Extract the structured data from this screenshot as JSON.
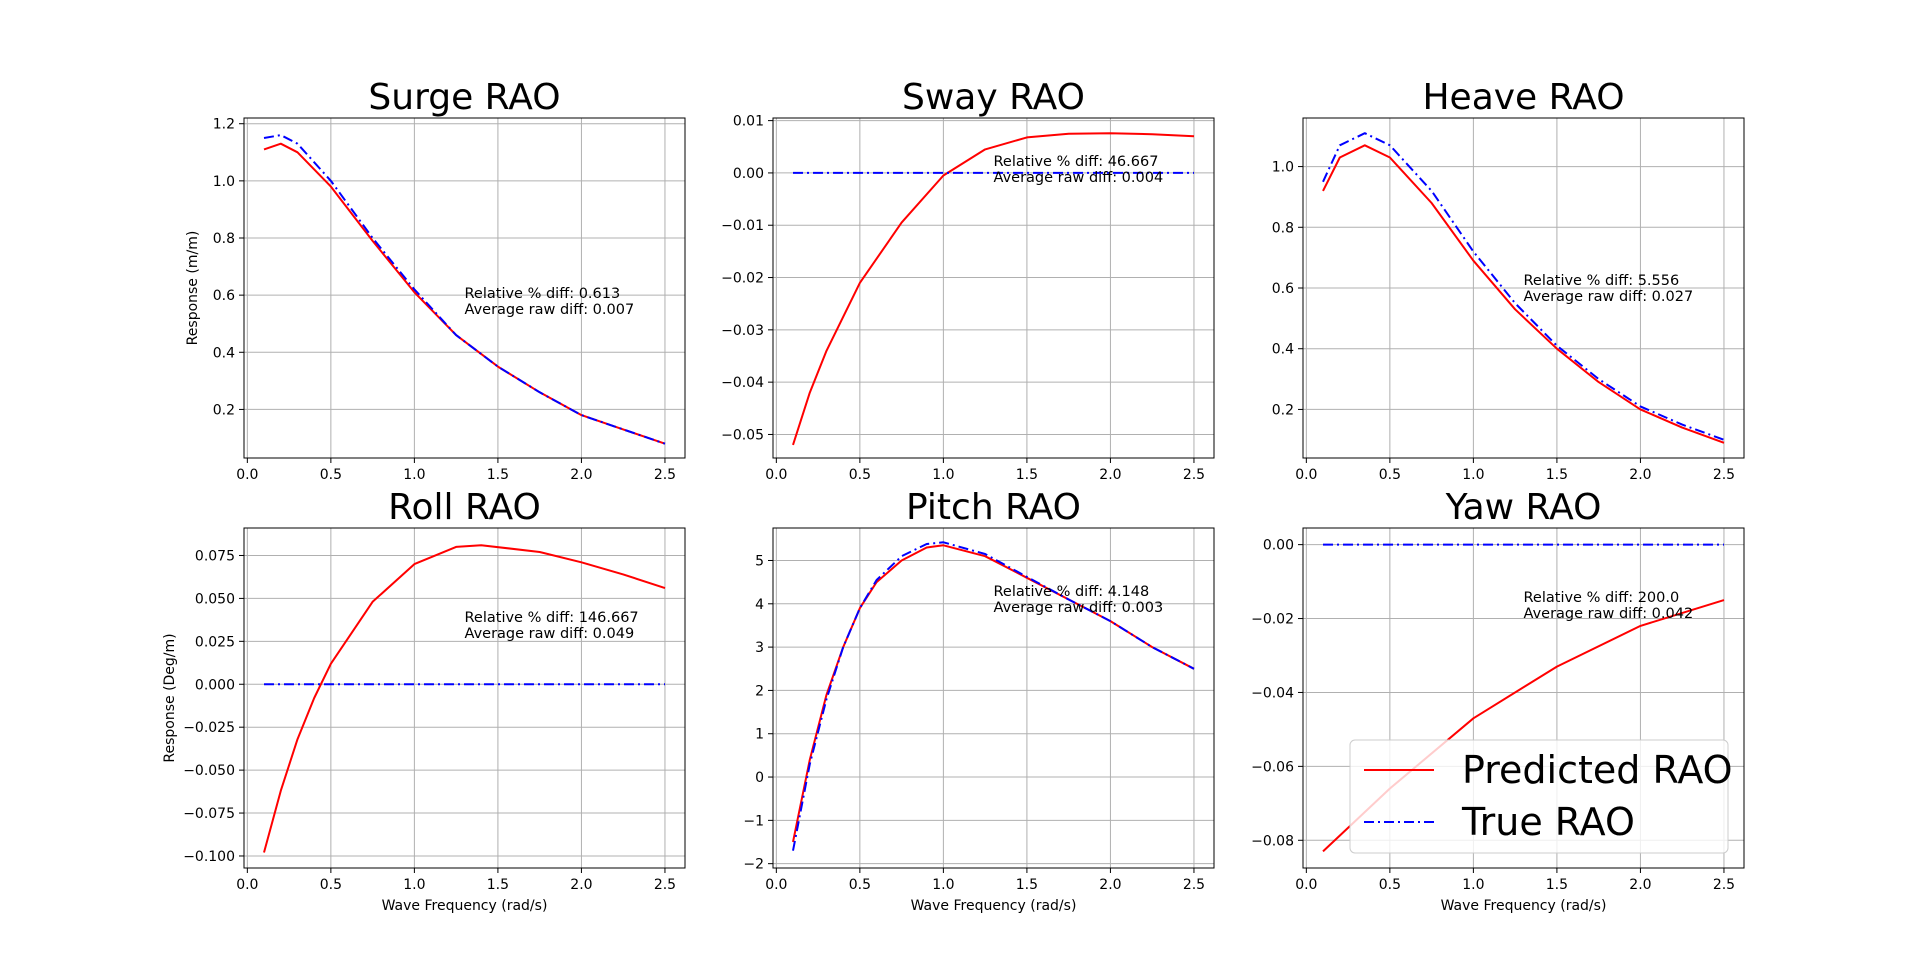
{
  "chart_data": [
    {
      "type": "line",
      "title": "Surge RAO",
      "xlabel": "",
      "ylabel": "Response (m/m)",
      "xlim": [
        -0.02,
        2.62
      ],
      "ylim": [
        0.03,
        1.22
      ],
      "xticks": [
        0.0,
        0.5,
        1.0,
        1.5,
        2.0,
        2.5
      ],
      "xtick_labels": [
        "0.0",
        "0.5",
        "1.0",
        "1.5",
        "2.0",
        "2.5"
      ],
      "yticks": [
        0.2,
        0.4,
        0.6,
        0.8,
        1.0,
        1.2
      ],
      "ytick_labels": [
        "0.2",
        "0.4",
        "0.6",
        "0.8",
        "1.0",
        "1.2"
      ],
      "grid": true,
      "annotation": [
        "Relative % diff: 0.613",
        "Average raw diff: 0.007"
      ],
      "series": [
        {
          "name": "Predicted RAO",
          "color": "#ff0000",
          "style": "solid",
          "x": [
            0.1,
            0.2,
            0.3,
            0.5,
            0.75,
            1.0,
            1.25,
            1.5,
            1.75,
            2.0,
            2.25,
            2.5
          ],
          "y": [
            1.11,
            1.13,
            1.1,
            0.98,
            0.79,
            0.61,
            0.46,
            0.35,
            0.26,
            0.18,
            0.13,
            0.08
          ]
        },
        {
          "name": "True RAO",
          "color": "#0000ff",
          "style": "dashdot",
          "x": [
            0.1,
            0.2,
            0.3,
            0.5,
            0.75,
            1.0,
            1.25,
            1.5,
            1.75,
            2.0,
            2.25,
            2.5
          ],
          "y": [
            1.15,
            1.16,
            1.13,
            1.0,
            0.8,
            0.62,
            0.46,
            0.35,
            0.26,
            0.18,
            0.13,
            0.08
          ]
        }
      ]
    },
    {
      "type": "line",
      "title": "Sway RAO",
      "xlabel": "",
      "ylabel": "",
      "xlim": [
        -0.02,
        2.62
      ],
      "ylim": [
        -0.0545,
        0.0105
      ],
      "xticks": [
        0.0,
        0.5,
        1.0,
        1.5,
        2.0,
        2.5
      ],
      "xtick_labels": [
        "0.0",
        "0.5",
        "1.0",
        "1.5",
        "2.0",
        "2.5"
      ],
      "yticks": [
        -0.05,
        -0.04,
        -0.03,
        -0.02,
        -0.01,
        0.0,
        0.01
      ],
      "ytick_labels": [
        "−0.05",
        "−0.04",
        "−0.03",
        "−0.02",
        "−0.01",
        "0.00",
        "0.01"
      ],
      "grid": true,
      "annotation": [
        "Relative % diff: 46.667",
        "Average raw diff: 0.004"
      ],
      "series": [
        {
          "name": "Predicted RAO",
          "color": "#ff0000",
          "style": "solid",
          "x": [
            0.1,
            0.2,
            0.3,
            0.5,
            0.75,
            1.0,
            1.25,
            1.5,
            1.75,
            2.0,
            2.25,
            2.5
          ],
          "y": [
            -0.052,
            -0.042,
            -0.034,
            -0.021,
            -0.0095,
            -0.0005,
            0.0045,
            0.0068,
            0.0075,
            0.0076,
            0.0074,
            0.007
          ]
        },
        {
          "name": "True RAO",
          "color": "#0000ff",
          "style": "dashdot",
          "x": [
            0.1,
            2.5
          ],
          "y": [
            0.0,
            0.0
          ]
        }
      ]
    },
    {
      "type": "line",
      "title": "Heave RAO",
      "xlabel": "",
      "ylabel": "",
      "xlim": [
        -0.02,
        2.62
      ],
      "ylim": [
        0.04,
        1.16
      ],
      "xticks": [
        0.0,
        0.5,
        1.0,
        1.5,
        2.0,
        2.5
      ],
      "xtick_labels": [
        "0.0",
        "0.5",
        "1.0",
        "1.5",
        "2.0",
        "2.5"
      ],
      "yticks": [
        0.2,
        0.4,
        0.6,
        0.8,
        1.0
      ],
      "ytick_labels": [
        "0.2",
        "0.4",
        "0.6",
        "0.8",
        "1.0"
      ],
      "grid": true,
      "annotation": [
        "Relative % diff: 5.556",
        "Average raw diff: 0.027"
      ],
      "series": [
        {
          "name": "Predicted RAO",
          "color": "#ff0000",
          "style": "solid",
          "x": [
            0.1,
            0.2,
            0.35,
            0.5,
            0.75,
            1.0,
            1.25,
            1.5,
            1.75,
            2.0,
            2.25,
            2.5
          ],
          "y": [
            0.92,
            1.03,
            1.07,
            1.03,
            0.88,
            0.69,
            0.53,
            0.4,
            0.29,
            0.2,
            0.14,
            0.09
          ]
        },
        {
          "name": "True RAO",
          "color": "#0000ff",
          "style": "dashdot",
          "x": [
            0.1,
            0.2,
            0.35,
            0.5,
            0.75,
            1.0,
            1.25,
            1.5,
            1.75,
            2.0,
            2.25,
            2.5
          ],
          "y": [
            0.95,
            1.07,
            1.11,
            1.07,
            0.92,
            0.72,
            0.55,
            0.41,
            0.3,
            0.21,
            0.15,
            0.1
          ]
        }
      ]
    },
    {
      "type": "line",
      "title": "Roll RAO",
      "xlabel": "Wave Frequency (rad/s)",
      "ylabel": "Response (Deg/m)",
      "xlim": [
        -0.02,
        2.62
      ],
      "ylim": [
        -0.107,
        0.091
      ],
      "xticks": [
        0.0,
        0.5,
        1.0,
        1.5,
        2.0,
        2.5
      ],
      "xtick_labels": [
        "0.0",
        "0.5",
        "1.0",
        "1.5",
        "2.0",
        "2.5"
      ],
      "yticks": [
        -0.1,
        -0.075,
        -0.05,
        -0.025,
        0.0,
        0.025,
        0.05,
        0.075
      ],
      "ytick_labels": [
        "−0.100",
        "−0.075",
        "−0.050",
        "−0.025",
        "0.000",
        "0.025",
        "0.050",
        "0.075"
      ],
      "grid": true,
      "annotation": [
        "Relative % diff: 146.667",
        "Average raw diff: 0.049"
      ],
      "series": [
        {
          "name": "Predicted RAO",
          "color": "#ff0000",
          "style": "solid",
          "x": [
            0.1,
            0.2,
            0.3,
            0.4,
            0.5,
            0.75,
            1.0,
            1.25,
            1.4,
            1.75,
            2.0,
            2.25,
            2.5
          ],
          "y": [
            -0.098,
            -0.062,
            -0.032,
            -0.008,
            0.012,
            0.048,
            0.07,
            0.08,
            0.081,
            0.077,
            0.071,
            0.064,
            0.056
          ]
        },
        {
          "name": "True RAO",
          "color": "#0000ff",
          "style": "dashdot",
          "x": [
            0.1,
            2.5
          ],
          "y": [
            0.0,
            0.0
          ]
        }
      ]
    },
    {
      "type": "line",
      "title": "Pitch RAO",
      "xlabel": "Wave Frequency (rad/s)",
      "ylabel": "",
      "xlim": [
        -0.02,
        2.62
      ],
      "ylim": [
        -2.1,
        5.75
      ],
      "xticks": [
        0.0,
        0.5,
        1.0,
        1.5,
        2.0,
        2.5
      ],
      "xtick_labels": [
        "0.0",
        "0.5",
        "1.0",
        "1.5",
        "2.0",
        "2.5"
      ],
      "yticks": [
        -2,
        -1,
        0,
        1,
        2,
        3,
        4,
        5
      ],
      "ytick_labels": [
        "−2",
        "−1",
        "0",
        "1",
        "2",
        "3",
        "4",
        "5"
      ],
      "grid": true,
      "annotation": [
        "Relative % diff: 4.148",
        "Average raw diff: 0.003"
      ],
      "series": [
        {
          "name": "Predicted RAO",
          "color": "#ff0000",
          "style": "solid",
          "x": [
            0.1,
            0.2,
            0.3,
            0.4,
            0.5,
            0.6,
            0.75,
            0.9,
            1.0,
            1.25,
            1.5,
            1.75,
            2.0,
            2.25,
            2.5
          ],
          "y": [
            -1.5,
            0.4,
            1.9,
            3.0,
            3.9,
            4.5,
            5.0,
            5.3,
            5.35,
            5.1,
            4.6,
            4.1,
            3.6,
            3.0,
            2.5
          ]
        },
        {
          "name": "True RAO",
          "color": "#0000ff",
          "style": "dashdot",
          "x": [
            0.1,
            0.2,
            0.3,
            0.4,
            0.5,
            0.6,
            0.75,
            0.9,
            1.0,
            1.25,
            1.5,
            1.75,
            2.0,
            2.25,
            2.5
          ],
          "y": [
            -1.7,
            0.3,
            1.8,
            3.0,
            3.9,
            4.55,
            5.1,
            5.38,
            5.42,
            5.15,
            4.62,
            4.1,
            3.6,
            3.0,
            2.5
          ]
        }
      ]
    },
    {
      "type": "line",
      "title": "Yaw RAO",
      "xlabel": "Wave Frequency (rad/s)",
      "ylabel": "",
      "xlim": [
        -0.02,
        2.62
      ],
      "ylim": [
        -0.0875,
        0.0045
      ],
      "xticks": [
        0.0,
        0.5,
        1.0,
        1.5,
        2.0,
        2.5
      ],
      "xtick_labels": [
        "0.0",
        "0.5",
        "1.0",
        "1.5",
        "2.0",
        "2.5"
      ],
      "yticks": [
        -0.08,
        -0.06,
        -0.04,
        -0.02,
        0.0
      ],
      "ytick_labels": [
        "−0.08",
        "−0.06",
        "−0.04",
        "−0.02",
        "0.00"
      ],
      "grid": true,
      "annotation": [
        "Relative % diff: 200.0",
        "Average raw diff: 0.042"
      ],
      "legend": {
        "placement": "lower-right",
        "entries": [
          "Predicted RAO",
          "True RAO"
        ]
      },
      "series": [
        {
          "name": "Predicted RAO",
          "color": "#ff0000",
          "style": "solid",
          "x": [
            0.1,
            0.5,
            1.0,
            1.5,
            2.0,
            2.5
          ],
          "y": [
            -0.083,
            -0.066,
            -0.047,
            -0.033,
            -0.022,
            -0.015
          ]
        },
        {
          "name": "True RAO",
          "color": "#0000ff",
          "style": "dashdot",
          "x": [
            0.1,
            2.5
          ],
          "y": [
            0.0,
            0.0
          ]
        }
      ]
    }
  ]
}
